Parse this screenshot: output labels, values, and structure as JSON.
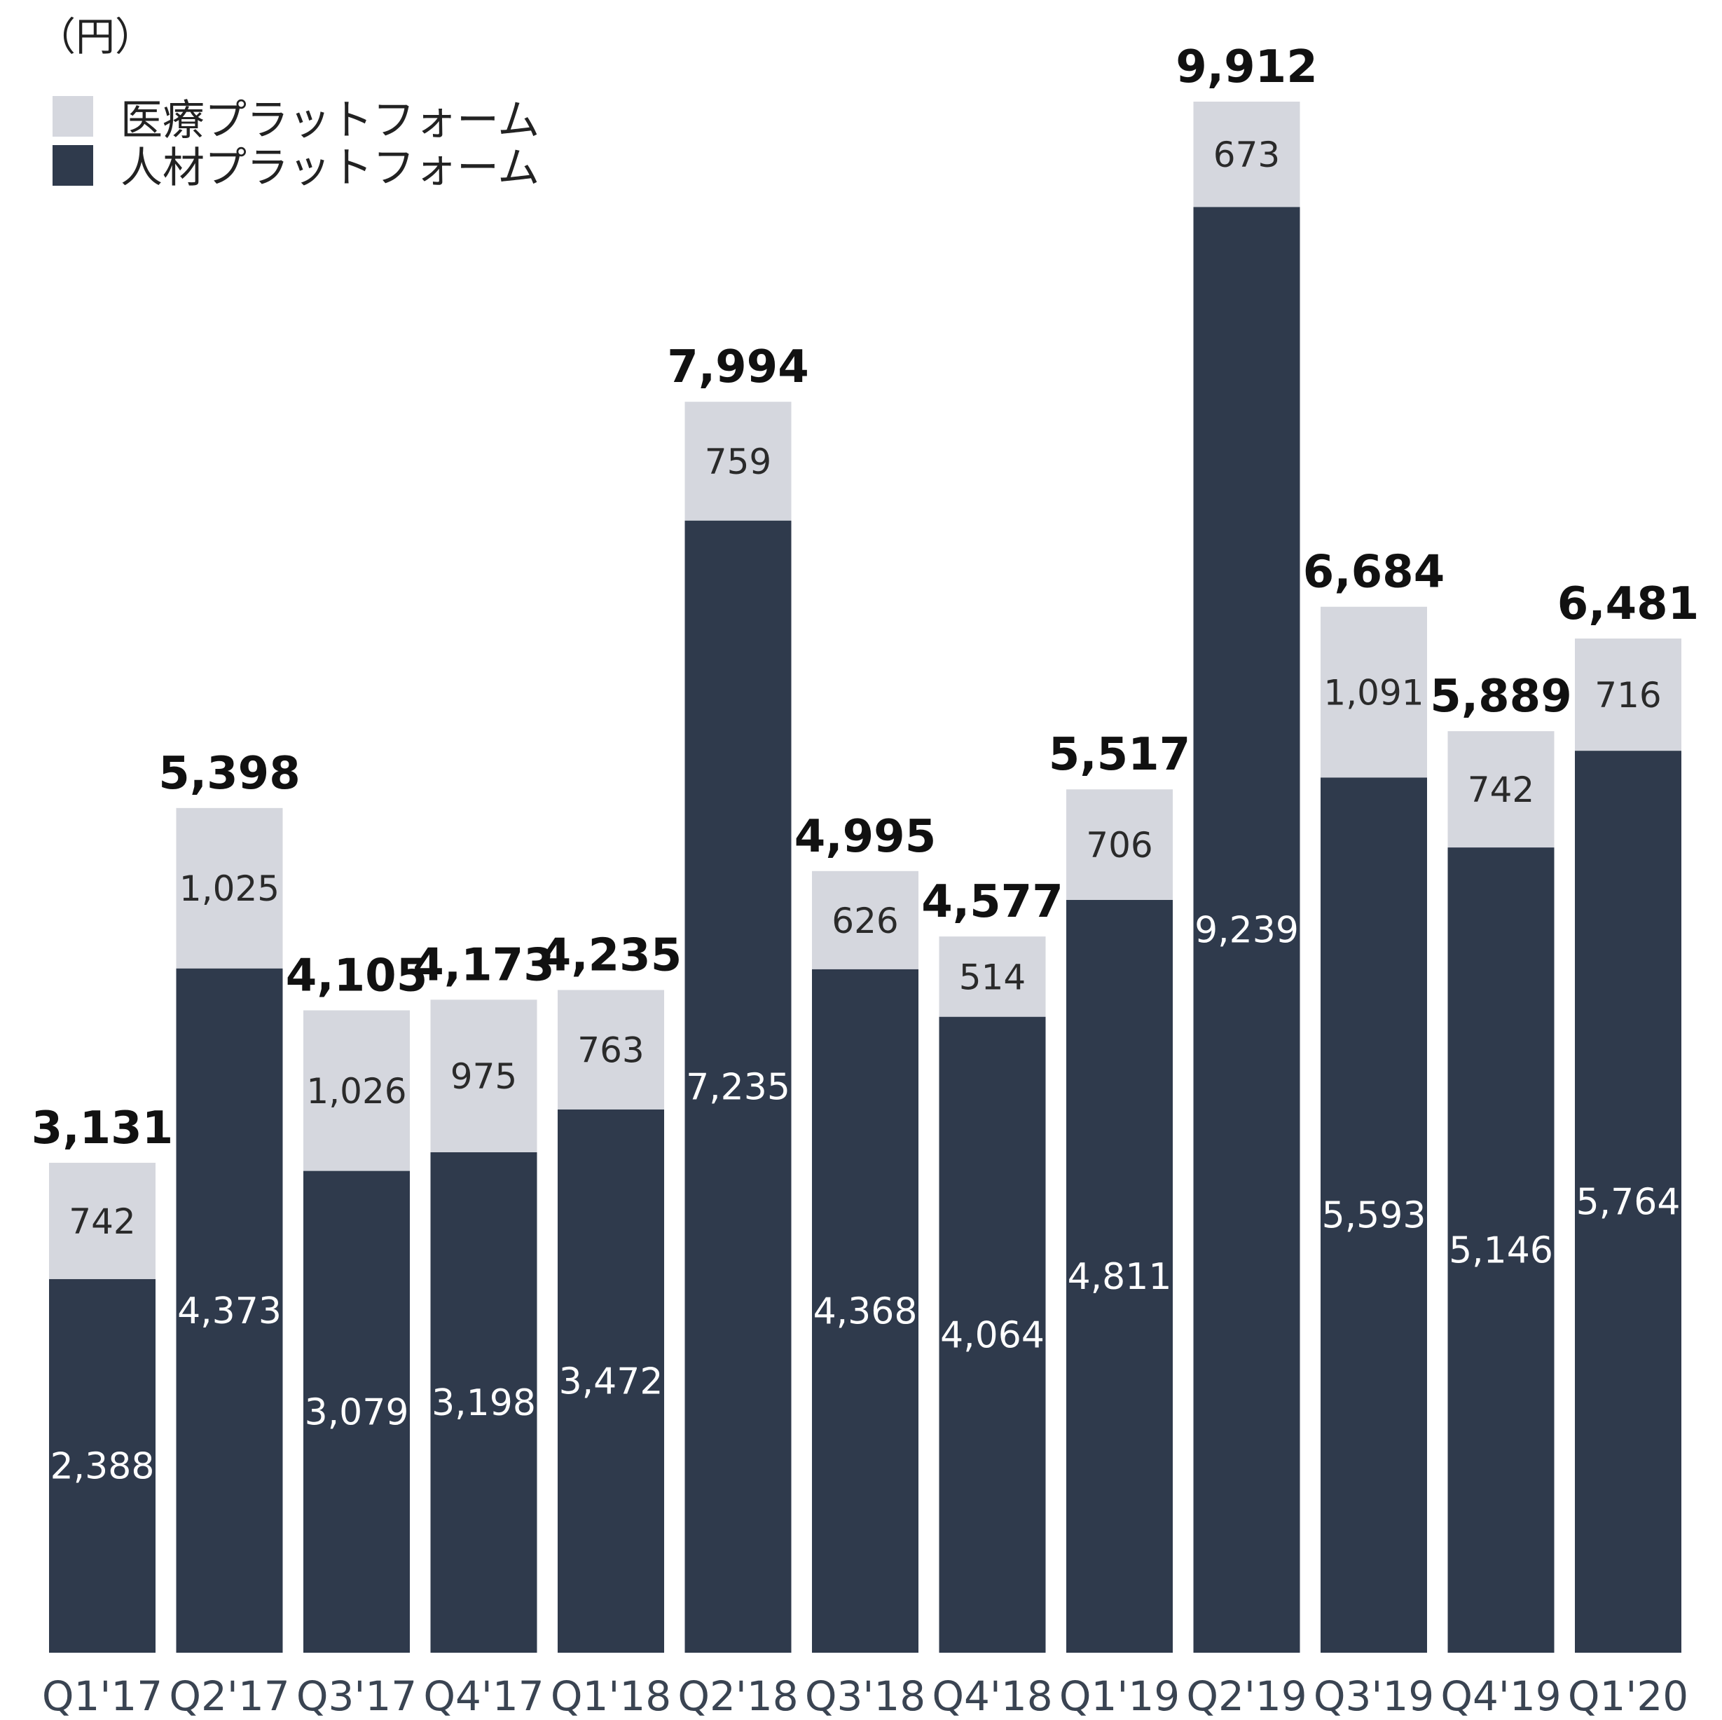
{
  "chart_data": {
    "type": "bar",
    "stacked": true,
    "unit_label": "（円）",
    "categories": [
      "Q1'17",
      "Q2'17",
      "Q3'17",
      "Q4'17",
      "Q1'18",
      "Q2'18",
      "Q3'18",
      "Q4'18",
      "Q1'19",
      "Q2'19",
      "Q3'19",
      "Q4'19",
      "Q1'20"
    ],
    "series": [
      {
        "name": "人材プラットフォーム",
        "color": "#2f3a4c",
        "values": [
          2388,
          4373,
          3079,
          3198,
          3472,
          7235,
          4368,
          4064,
          4811,
          9239,
          5593,
          5146,
          5764
        ]
      },
      {
        "name": "医療プラットフォーム",
        "color": "#d5d7de",
        "values": [
          742,
          1025,
          1026,
          975,
          763,
          759,
          626,
          514,
          706,
          673,
          1091,
          742,
          716
        ]
      }
    ],
    "totals": [
      3131,
      5398,
      4105,
      4173,
      4235,
      7994,
      4995,
      4577,
      5517,
      9912,
      6684,
      5889,
      6481
    ],
    "legend_position": "top-left",
    "grid": false,
    "ylim": [
      0,
      9912
    ]
  }
}
